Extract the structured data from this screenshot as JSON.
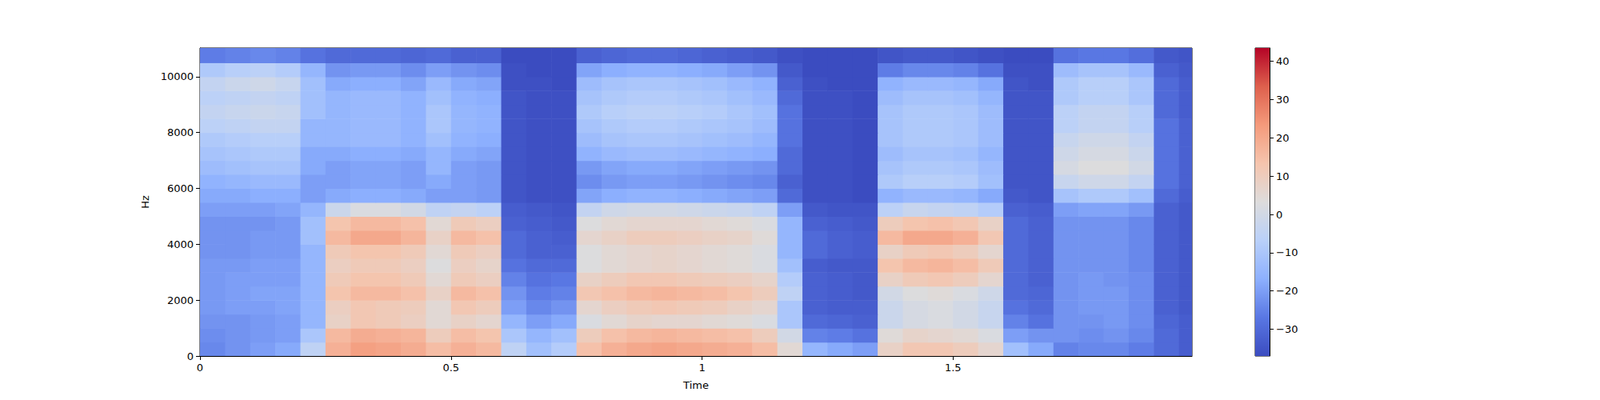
{
  "chart_data": {
    "type": "heatmap",
    "x_label": "Time",
    "y_label": "Hz",
    "xlim": [
      0,
      1.976
    ],
    "xticks": [
      0,
      0.5,
      1,
      1.5
    ],
    "ylim": [
      0,
      11025
    ],
    "yticks": [
      0,
      2000,
      4000,
      6000,
      8000,
      10000
    ],
    "grid": false,
    "x_bins": [
      0,
      0.05,
      0.1,
      0.15,
      0.2,
      0.25,
      0.3,
      0.35,
      0.4,
      0.45,
      0.5,
      0.55,
      0.6,
      0.65,
      0.7,
      0.75,
      0.8,
      0.85,
      0.9,
      0.95,
      1.0,
      1.05,
      1.1,
      1.15,
      1.2,
      1.25,
      1.3,
      1.35,
      1.4,
      1.45,
      1.5,
      1.55,
      1.6,
      1.65,
      1.7,
      1.75,
      1.8,
      1.85,
      1.9,
      1.95,
      1.976
    ],
    "y_bins": [
      0,
      500,
      1000,
      1500,
      2000,
      2500,
      3000,
      3500,
      4000,
      4500,
      5000,
      5500,
      6000,
      6500,
      7000,
      7500,
      8000,
      8500,
      9000,
      9500,
      10000,
      10500,
      11025
    ],
    "values": [
      [
        -24,
        -22,
        -20,
        -18,
        -5,
        18,
        22,
        21,
        19,
        15,
        18,
        16,
        -5,
        -12,
        -8,
        14,
        18,
        20,
        21,
        20,
        19,
        18,
        15,
        5,
        -15,
        -18,
        -20,
        8,
        12,
        12,
        10,
        6,
        -12,
        -18,
        -25,
        -24,
        -24,
        -26,
        -30,
        -33
      ],
      [
        -23,
        -22,
        -21,
        -20,
        -10,
        16,
        19,
        18,
        17,
        10,
        15,
        13,
        -10,
        -15,
        -12,
        10,
        14,
        16,
        17,
        16,
        15,
        14,
        10,
        0,
        -25,
        -26,
        -28,
        4,
        7,
        6,
        5,
        2,
        -20,
        -22,
        -22,
        -23,
        -22,
        -24,
        -30,
        -33
      ],
      [
        -22,
        -22,
        -21,
        -20,
        -15,
        8,
        12,
        11,
        9,
        5,
        8,
        6,
        -15,
        -20,
        -18,
        2,
        5,
        7,
        6,
        6,
        5,
        4,
        2,
        -10,
        -30,
        -31,
        -32,
        -2,
        1,
        2,
        0,
        -3,
        -25,
        -28,
        -22,
        -22,
        -21,
        -23,
        -31,
        -33
      ],
      [
        -21,
        -20,
        -20,
        -19,
        -15,
        9,
        12,
        11,
        10,
        5,
        12,
        10,
        -20,
        -24,
        -22,
        6,
        9,
        11,
        12,
        11,
        10,
        8,
        6,
        -10,
        -32,
        -33,
        -33,
        -2,
        1,
        2,
        0,
        -3,
        -28,
        -30,
        -22,
        -21,
        -21,
        -23,
        -32,
        -34
      ],
      [
        -21,
        -20,
        -19,
        -19,
        -15,
        13,
        16,
        16,
        14,
        8,
        16,
        14,
        -22,
        -26,
        -25,
        12,
        14,
        16,
        17,
        16,
        15,
        13,
        10,
        -5,
        -32,
        -33,
        -34,
        0,
        3,
        4,
        2,
        -1,
        -30,
        -31,
        -22,
        -21,
        -21,
        -23,
        -32,
        -34
      ],
      [
        -21,
        -20,
        -20,
        -20,
        -15,
        11,
        13,
        13,
        11,
        5,
        11,
        9,
        -25,
        -28,
        -27,
        8,
        10,
        12,
        12,
        11,
        10,
        9,
        7,
        -8,
        -32,
        -33,
        -34,
        8,
        11,
        12,
        10,
        6,
        -30,
        -32,
        -22,
        -21,
        -22,
        -23,
        -32,
        -34
      ],
      [
        -21,
        -21,
        -20,
        -20,
        -15,
        9,
        11,
        11,
        9,
        3,
        9,
        7,
        -28,
        -30,
        -30,
        3,
        5,
        6,
        7,
        6,
        5,
        4,
        2,
        -12,
        -33,
        -34,
        -34,
        13,
        16,
        17,
        15,
        11,
        -30,
        -32,
        -22,
        -22,
        -22,
        -24,
        -32,
        -34
      ],
      [
        -22,
        -22,
        -21,
        -21,
        -15,
        11,
        13,
        13,
        11,
        5,
        11,
        9,
        -30,
        -32,
        -32,
        3,
        5,
        6,
        7,
        6,
        5,
        4,
        2,
        -15,
        -30,
        -32,
        -33,
        8,
        11,
        12,
        10,
        6,
        -30,
        -32,
        -22,
        -22,
        -22,
        -24,
        -32,
        -34
      ],
      [
        -22,
        -22,
        -21,
        -21,
        -12,
        16,
        20,
        20,
        17,
        8,
        16,
        14,
        -30,
        -32,
        -33,
        6,
        8,
        10,
        10,
        9,
        8,
        7,
        4,
        -15,
        -30,
        -32,
        -33,
        16,
        20,
        20,
        18,
        12,
        -30,
        -32,
        -22,
        -22,
        -22,
        -24,
        -32,
        -34
      ],
      [
        -22,
        -22,
        -22,
        -21,
        -12,
        13,
        16,
        16,
        14,
        5,
        11,
        9,
        -32,
        -33,
        -34,
        3,
        5,
        6,
        6,
        6,
        5,
        4,
        2,
        -15,
        -32,
        -33,
        -34,
        10,
        13,
        14,
        12,
        8,
        -30,
        -32,
        -22,
        -22,
        -22,
        -24,
        -32,
        -34
      ],
      [
        -20,
        -20,
        -20,
        -19,
        -15,
        -2,
        2,
        2,
        0,
        -5,
        -4,
        -6,
        -33,
        -34,
        -35,
        -4,
        -1,
        0,
        0,
        -1,
        -2,
        -3,
        -5,
        -20,
        -34,
        -35,
        -35,
        -6,
        -3,
        -4,
        -5,
        -8,
        -32,
        -33,
        -20,
        -19,
        -19,
        -21,
        -32,
        -34
      ],
      [
        -18,
        -18,
        -17,
        -17,
        -20,
        -18,
        -17,
        -17,
        -18,
        -20,
        -20,
        -21,
        -35,
        -36,
        -36,
        -19,
        -17,
        -16,
        -16,
        -17,
        -18,
        -19,
        -20,
        -30,
        -36,
        -36,
        -37,
        -16,
        -14,
        -14,
        -15,
        -18,
        -34,
        -35,
        -11,
        -9,
        -9,
        -12,
        -30,
        -33
      ],
      [
        -16,
        -15,
        -14,
        -14,
        -20,
        -20,
        -19,
        -19,
        -20,
        -18,
        -20,
        -21,
        -35,
        -36,
        -36,
        -23,
        -21,
        -20,
        -20,
        -21,
        -22,
        -23,
        -24,
        -32,
        -36,
        -36,
        -37,
        -9,
        -7,
        -7,
        -8,
        -12,
        -35,
        -35,
        -3,
        -1,
        -1,
        -4,
        -28,
        -32
      ],
      [
        -13,
        -12,
        -11,
        -11,
        -18,
        -20,
        -19,
        -19,
        -20,
        -15,
        -20,
        -21,
        -35,
        -36,
        -36,
        -21,
        -19,
        -18,
        -18,
        -19,
        -20,
        -21,
        -22,
        -30,
        -36,
        -36,
        -37,
        -11,
        -9,
        -9,
        -10,
        -13,
        -35,
        -35,
        1,
        3,
        3,
        0,
        -28,
        -32
      ],
      [
        -11,
        -10,
        -9,
        -9,
        -18,
        -18,
        -17,
        -17,
        -18,
        -15,
        -18,
        -19,
        -35,
        -36,
        -36,
        -16,
        -14,
        -13,
        -13,
        -14,
        -15,
        -16,
        -17,
        -30,
        -36,
        -36,
        -37,
        -13,
        -11,
        -11,
        -12,
        -15,
        -35,
        -35,
        -1,
        1,
        1,
        -2,
        -28,
        -32
      ],
      [
        -9,
        -8,
        -7,
        -7,
        -15,
        -15,
        -14,
        -14,
        -16,
        -12,
        -16,
        -17,
        -35,
        -36,
        -36,
        -13,
        -11,
        -10,
        -10,
        -11,
        -12,
        -13,
        -15,
        -28,
        -36,
        -36,
        -37,
        -11,
        -9,
        -9,
        -10,
        -13,
        -35,
        -35,
        -3,
        -1,
        -1,
        -4,
        -28,
        -32
      ],
      [
        -6,
        -5,
        -4,
        -4,
        -15,
        -15,
        -14,
        -14,
        -16,
        -10,
        -15,
        -16,
        -35,
        -36,
        -36,
        -11,
        -9,
        -8,
        -8,
        -9,
        -10,
        -11,
        -13,
        -28,
        -36,
        -36,
        -37,
        -11,
        -9,
        -9,
        -10,
        -13,
        -35,
        -35,
        -6,
        -4,
        -4,
        -7,
        -28,
        -32
      ],
      [
        -4,
        -3,
        -2,
        -3,
        -12,
        -15,
        -14,
        -14,
        -16,
        -10,
        -15,
        -16,
        -35,
        -36,
        -36,
        -9,
        -7,
        -6,
        -6,
        -7,
        -8,
        -10,
        -12,
        -28,
        -36,
        -36,
        -37,
        -11,
        -9,
        -9,
        -10,
        -13,
        -35,
        -35,
        -6,
        -4,
        -4,
        -7,
        -30,
        -33
      ],
      [
        -6,
        -5,
        -4,
        -5,
        -12,
        -15,
        -14,
        -14,
        -16,
        -12,
        -16,
        -17,
        -35,
        -36,
        -36,
        -11,
        -9,
        -8,
        -8,
        -9,
        -10,
        -12,
        -14,
        -30,
        -36,
        -36,
        -37,
        -13,
        -11,
        -11,
        -12,
        -15,
        -35,
        -35,
        -9,
        -7,
        -7,
        -10,
        -30,
        -33
      ],
      [
        -4,
        -2,
        -1,
        -3,
        -12,
        -18,
        -17,
        -17,
        -19,
        -14,
        -18,
        -19,
        -36,
        -36,
        -37,
        -13,
        -11,
        -10,
        -10,
        -11,
        -12,
        -14,
        -16,
        -32,
        -36,
        -37,
        -37,
        -16,
        -14,
        -14,
        -15,
        -18,
        -35,
        -36,
        -9,
        -7,
        -7,
        -10,
        -30,
        -33
      ],
      [
        -9,
        -7,
        -6,
        -8,
        -15,
        -22,
        -21,
        -21,
        -23,
        -20,
        -22,
        -23,
        -36,
        -37,
        -37,
        -19,
        -17,
        -16,
        -16,
        -17,
        -18,
        -20,
        -22,
        -34,
        -37,
        -37,
        -37,
        -26,
        -24,
        -24,
        -25,
        -28,
        -36,
        -36,
        -13,
        -11,
        -11,
        -14,
        -32,
        -34
      ],
      [
        -26,
        -25,
        -24,
        -25,
        -28,
        -30,
        -30,
        -30,
        -31,
        -30,
        -32,
        -32,
        -37,
        -37,
        -37,
        -32,
        -31,
        -30,
        -30,
        -31,
        -32,
        -33,
        -34,
        -36,
        -37,
        -37,
        -37,
        -35,
        -34,
        -34,
        -35,
        -36,
        -37,
        -37,
        -28,
        -27,
        -27,
        -29,
        -34,
        -35
      ]
    ],
    "colorbar": {
      "lim": [
        -37,
        43.5
      ],
      "ticks": [
        {
          "value": -30,
          "label": "−30"
        },
        {
          "value": -20,
          "label": "−20"
        },
        {
          "value": -10,
          "label": "−10"
        },
        0,
        10,
        20,
        30,
        40
      ]
    }
  }
}
